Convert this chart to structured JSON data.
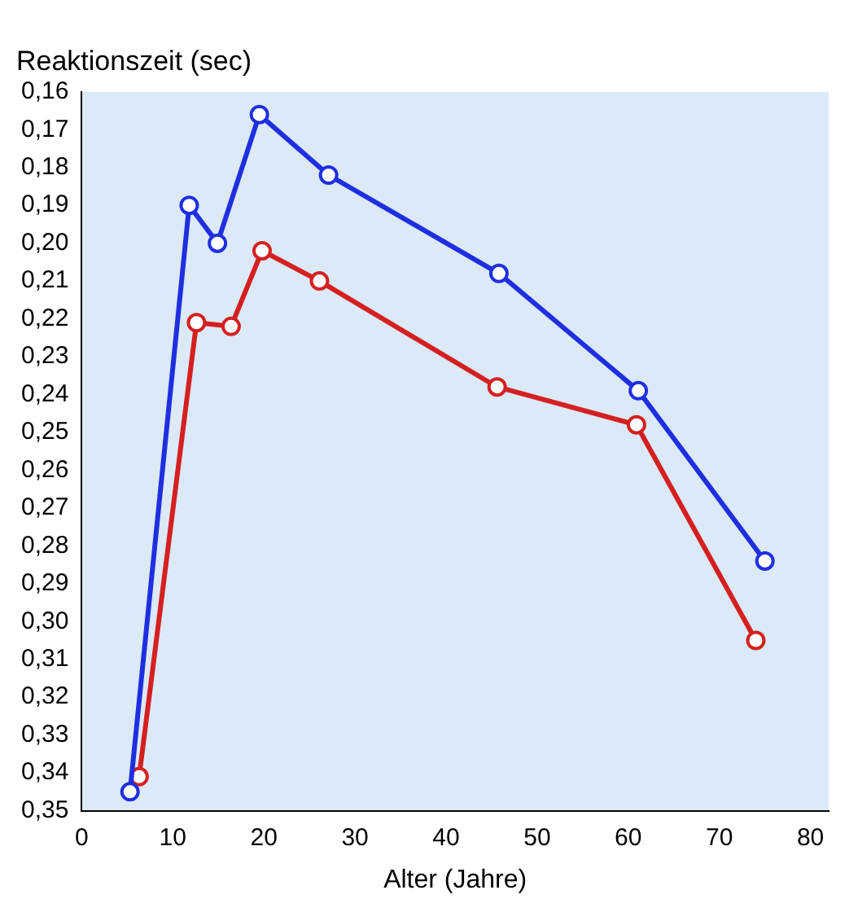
{
  "chart_data": {
    "type": "line",
    "title": "Reaktionszeit (sec)",
    "xlabel": "Alter (Jahre)",
    "xlim": [
      0,
      82
    ],
    "xticks": [
      0,
      10,
      20,
      30,
      40,
      50,
      60,
      70,
      80
    ],
    "ylim": [
      0.35,
      0.16
    ],
    "yticks": [
      {
        "value": 0.16,
        "label": "0,16"
      },
      {
        "value": 0.17,
        "label": "0,17"
      },
      {
        "value": 0.18,
        "label": "0,18"
      },
      {
        "value": 0.19,
        "label": "0,19"
      },
      {
        "value": 0.2,
        "label": "0,20"
      },
      {
        "value": 0.21,
        "label": "0,21"
      },
      {
        "value": 0.22,
        "label": "0,22"
      },
      {
        "value": 0.23,
        "label": "0,23"
      },
      {
        "value": 0.24,
        "label": "0,24"
      },
      {
        "value": 0.25,
        "label": "0,25"
      },
      {
        "value": 0.26,
        "label": "0,26"
      },
      {
        "value": 0.27,
        "label": "0,27"
      },
      {
        "value": 0.28,
        "label": "0,28"
      },
      {
        "value": 0.29,
        "label": "0,29"
      },
      {
        "value": 0.3,
        "label": "0,30"
      },
      {
        "value": 0.31,
        "label": "0,31"
      },
      {
        "value": 0.32,
        "label": "0,32"
      },
      {
        "value": 0.33,
        "label": "0,33"
      },
      {
        "value": 0.34,
        "label": "0,34"
      },
      {
        "value": 0.35,
        "label": "0,35"
      }
    ],
    "grid": false,
    "legend": false,
    "marker": "circle",
    "line_style": "solid",
    "series": [
      {
        "color": "#1f2fe0",
        "x": [
          5.3,
          11.8,
          14.9,
          19.5,
          27.1,
          45.8,
          61.1,
          75
        ],
        "values": [
          0.345,
          0.19,
          0.2,
          0.166,
          0.182,
          0.208,
          0.239,
          0.284
        ]
      },
      {
        "color": "#d42020",
        "x": [
          6.3,
          12.6,
          16.4,
          19.8,
          26.1,
          45.6,
          60.9,
          74
        ],
        "values": [
          0.341,
          0.221,
          0.222,
          0.202,
          0.21,
          0.238,
          0.248,
          0.305
        ]
      }
    ]
  }
}
